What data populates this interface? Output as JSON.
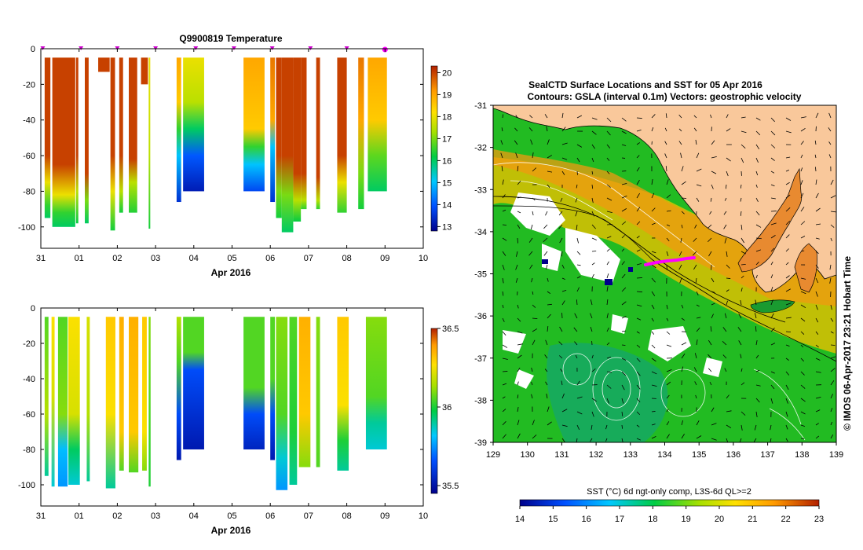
{
  "charts": {
    "top": {
      "title": "Q9900819  Temperature",
      "xlabel": "Apr 2016",
      "xticks": [
        "31",
        "01",
        "02",
        "03",
        "04",
        "05",
        "06",
        "07",
        "08",
        "09",
        "10"
      ],
      "yticks": [
        "0",
        "-20",
        "-40",
        "-60",
        "-80",
        "-100"
      ],
      "cbar_ticks": [
        "20",
        "19",
        "18",
        "17",
        "16",
        "15",
        "14",
        "13"
      ]
    },
    "bottom": {
      "xlabel": "Apr 2016",
      "xticks": [
        "31",
        "01",
        "02",
        "03",
        "04",
        "05",
        "06",
        "07",
        "08",
        "09",
        "10"
      ],
      "yticks": [
        "0",
        "-20",
        "-40",
        "-60",
        "-80",
        "-100"
      ],
      "cbar_ticks": [
        "36.5",
        "36",
        "35.5"
      ]
    },
    "map": {
      "title_line1": "SealCTD Surface Locations and SST for 05 Apr 2016",
      "title_line2": "Contours: GSLA (interval 0.1m) Vectors: geostrophic velocity",
      "side_label": "© IMOS 06-Apr-2017 23:21 Hobart Time",
      "lon_ticks": [
        "129",
        "130",
        "131",
        "132",
        "133",
        "134",
        "135",
        "136",
        "137",
        "138",
        "139"
      ],
      "lat_ticks": [
        "-31",
        "-32",
        "-33",
        "-34",
        "-35",
        "-36",
        "-37",
        "-38",
        "-39"
      ],
      "cbar_title": "SST (°C) 6d ngt-only comp, L3S-6d QL>=2",
      "cbar_ticks": [
        "14",
        "15",
        "16",
        "17",
        "18",
        "19",
        "20",
        "21",
        "22",
        "23"
      ]
    }
  },
  "chart_data": [
    {
      "type": "heatmap",
      "title": "Q9900819  Temperature",
      "xlabel": "Apr 2016",
      "ylabel": "",
      "x_range": [
        0,
        10
      ],
      "y_range": [
        -112,
        0
      ],
      "colorbar_range": [
        12.8,
        20.3
      ],
      "profile_markers_x": [
        0.05,
        1.05,
        2.0,
        3.0,
        4.05,
        5.05,
        6.05,
        7.05,
        8.0
      ],
      "profiles": [
        {
          "x": 0.1,
          "w": 0.15,
          "bottom": -95,
          "stops": [
            [
              -5,
              20
            ],
            [
              -60,
              20
            ],
            [
              -75,
              18
            ],
            [
              -88,
              16.5
            ],
            [
              -95,
              16
            ]
          ]
        },
        {
          "x": 0.3,
          "w": 0.6,
          "bottom": -100,
          "stops": [
            [
              -5,
              20
            ],
            [
              -65,
              20
            ],
            [
              -82,
              18
            ],
            [
              -92,
              16.5
            ],
            [
              -100,
              16
            ]
          ]
        },
        {
          "x": 0.92,
          "w": 0.06,
          "bottom": -98,
          "stops": [
            [
              -5,
              20
            ],
            [
              -60,
              20
            ],
            [
              -80,
              17.5
            ],
            [
              -98,
              16.2
            ]
          ]
        },
        {
          "x": 1.15,
          "w": 0.1,
          "bottom": -98,
          "stops": [
            [
              -5,
              20
            ],
            [
              -70,
              20
            ],
            [
              -85,
              17
            ],
            [
              -98,
              16
            ]
          ]
        },
        {
          "x": 1.5,
          "w": 0.3,
          "bottom": -13,
          "stops": [
            [
              -5,
              20
            ],
            [
              -13,
              20
            ]
          ]
        },
        {
          "x": 1.82,
          "w": 0.12,
          "bottom": -102,
          "stops": [
            [
              -5,
              20
            ],
            [
              -60,
              20
            ],
            [
              -80,
              18
            ],
            [
              -102,
              16.3
            ]
          ]
        },
        {
          "x": 2.05,
          "w": 0.1,
          "bottom": -92,
          "stops": [
            [
              -5,
              20
            ],
            [
              -60,
              20
            ],
            [
              -80,
              17.5
            ],
            [
              -92,
              16.3
            ]
          ]
        },
        {
          "x": 2.3,
          "w": 0.22,
          "bottom": -92,
          "stops": [
            [
              -5,
              20
            ],
            [
              -62,
              20
            ],
            [
              -75,
              17.5
            ],
            [
              -92,
              16.4
            ]
          ]
        },
        {
          "x": 2.62,
          "w": 0.18,
          "bottom": -20,
          "stops": [
            [
              -5,
              20
            ],
            [
              -20,
              20
            ]
          ]
        },
        {
          "x": 2.82,
          "w": 0.04,
          "bottom": -101,
          "stops": [
            [
              -5,
              18
            ],
            [
              -60,
              17.5
            ],
            [
              -101,
              16.3
            ]
          ]
        },
        {
          "x": 3.55,
          "w": 0.12,
          "bottom": -86,
          "stops": [
            [
              -5,
              19
            ],
            [
              -30,
              18.5
            ],
            [
              -45,
              16.5
            ],
            [
              -60,
              15
            ],
            [
              -86,
              13.5
            ]
          ]
        },
        {
          "x": 3.72,
          "w": 0.55,
          "bottom": -80,
          "stops": [
            [
              -5,
              18
            ],
            [
              -30,
              17.5
            ],
            [
              -45,
              16
            ],
            [
              -60,
              14
            ],
            [
              -80,
              13.2
            ]
          ]
        },
        {
          "x": 5.3,
          "w": 0.55,
          "bottom": -80,
          "stops": [
            [
              -5,
              19
            ],
            [
              -45,
              18.5
            ],
            [
              -55,
              16.5
            ],
            [
              -65,
              15
            ],
            [
              -80,
              13.8
            ]
          ]
        },
        {
          "x": 6.0,
          "w": 0.12,
          "bottom": -86,
          "stops": [
            [
              -5,
              19.5
            ],
            [
              -40,
              19
            ],
            [
              -55,
              15
            ],
            [
              -86,
              13.5
            ]
          ]
        },
        {
          "x": 6.15,
          "w": 0.15,
          "bottom": -95,
          "stops": [
            [
              -5,
              20
            ],
            [
              -60,
              20
            ],
            [
              -80,
              17
            ],
            [
              -95,
              16.3
            ]
          ]
        },
        {
          "x": 6.3,
          "w": 0.3,
          "bottom": -103,
          "stops": [
            [
              -5,
              20
            ],
            [
              -60,
              20
            ],
            [
              -82,
              17
            ],
            [
              -103,
              16
            ]
          ]
        },
        {
          "x": 6.6,
          "w": 0.2,
          "bottom": -97,
          "stops": [
            [
              -5,
              20
            ],
            [
              -70,
              20
            ],
            [
              -85,
              17.5
            ],
            [
              -97,
              16.2
            ]
          ]
        },
        {
          "x": 6.8,
          "w": 0.15,
          "bottom": -90,
          "stops": [
            [
              -5,
              20
            ],
            [
              -70,
              20
            ],
            [
              -85,
              17.5
            ],
            [
              -90,
              16.5
            ]
          ]
        },
        {
          "x": 7.2,
          "w": 0.1,
          "bottom": -90,
          "stops": [
            [
              -5,
              20
            ],
            [
              -72,
              20
            ],
            [
              -85,
              17.5
            ],
            [
              -90,
              16.5
            ]
          ]
        },
        {
          "x": 7.75,
          "w": 0.25,
          "bottom": -92,
          "stops": [
            [
              -5,
              20
            ],
            [
              -60,
              20
            ],
            [
              -75,
              18
            ],
            [
              -92,
              16.5
            ]
          ]
        },
        {
          "x": 8.3,
          "w": 0.15,
          "bottom": -90,
          "stops": [
            [
              -5,
              19.5
            ],
            [
              -40,
              19
            ],
            [
              -70,
              17
            ],
            [
              -90,
              16.3
            ]
          ]
        },
        {
          "x": 8.55,
          "w": 0.5,
          "bottom": -80,
          "stops": [
            [
              -5,
              19
            ],
            [
              -40,
              18.5
            ],
            [
              -60,
              16.8
            ],
            [
              -80,
              16
            ]
          ]
        }
      ]
    },
    {
      "type": "heatmap",
      "title": "",
      "xlabel": "Apr 2016",
      "ylabel": "",
      "x_range": [
        0,
        10
      ],
      "y_range": [
        -112,
        0
      ],
      "colorbar_range": [
        35.45,
        36.5
      ],
      "profiles": [
        {
          "x": 0.1,
          "w": 0.1,
          "bottom": -95,
          "stops": [
            [
              -5,
              36
            ],
            [
              -60,
              36.1
            ],
            [
              -95,
              35.85
            ]
          ]
        },
        {
          "x": 0.28,
          "w": 0.08,
          "bottom": -101,
          "stops": [
            [
              -5,
              36.2
            ],
            [
              -50,
              36.15
            ],
            [
              -101,
              35.8
            ]
          ]
        },
        {
          "x": 0.45,
          "w": 0.25,
          "bottom": -101,
          "stops": [
            [
              -5,
              36
            ],
            [
              -60,
              36.05
            ],
            [
              -80,
              35.75
            ],
            [
              -101,
              35.7
            ]
          ]
        },
        {
          "x": 0.72,
          "w": 0.3,
          "bottom": -100,
          "stops": [
            [
              -5,
              36.2
            ],
            [
              -60,
              36.15
            ],
            [
              -80,
              35.9
            ],
            [
              -100,
              35.8
            ]
          ]
        },
        {
          "x": 1.2,
          "w": 0.08,
          "bottom": -98,
          "stops": [
            [
              -5,
              36.15
            ],
            [
              -60,
              36.1
            ],
            [
              -98,
              35.85
            ]
          ]
        },
        {
          "x": 1.7,
          "w": 0.25,
          "bottom": -102,
          "stops": [
            [
              -5,
              36.25
            ],
            [
              -60,
              36.2
            ],
            [
              -102,
              35.85
            ]
          ]
        },
        {
          "x": 2.05,
          "w": 0.12,
          "bottom": -92,
          "stops": [
            [
              -5,
              36.3
            ],
            [
              -70,
              36.25
            ],
            [
              -92,
              36.0
            ]
          ]
        },
        {
          "x": 2.3,
          "w": 0.25,
          "bottom": -93,
          "stops": [
            [
              -5,
              36.3
            ],
            [
              -70,
              36.25
            ],
            [
              -93,
              36.0
            ]
          ]
        },
        {
          "x": 2.65,
          "w": 0.12,
          "bottom": -92,
          "stops": [
            [
              -5,
              36.25
            ],
            [
              -70,
              36.2
            ],
            [
              -92,
              36.05
            ]
          ]
        },
        {
          "x": 2.82,
          "w": 0.05,
          "bottom": -101,
          "stops": [
            [
              -5,
              36.05
            ],
            [
              -101,
              35.95
            ]
          ]
        },
        {
          "x": 3.55,
          "w": 0.12,
          "bottom": -86,
          "stops": [
            [
              -5,
              36.1
            ],
            [
              -30,
              36.0
            ],
            [
              -60,
              35.6
            ],
            [
              -86,
              35.5
            ]
          ]
        },
        {
          "x": 3.72,
          "w": 0.55,
          "bottom": -80,
          "stops": [
            [
              -5,
              36.0
            ],
            [
              -25,
              36.0
            ],
            [
              -35,
              35.6
            ],
            [
              -80,
              35.5
            ]
          ]
        },
        {
          "x": 5.3,
          "w": 0.55,
          "bottom": -80,
          "stops": [
            [
              -5,
              36.0
            ],
            [
              -45,
              36.0
            ],
            [
              -60,
              35.6
            ],
            [
              -80,
              35.52
            ]
          ]
        },
        {
          "x": 6.0,
          "w": 0.12,
          "bottom": -86,
          "stops": [
            [
              -5,
              36.0
            ],
            [
              -40,
              36.0
            ],
            [
              -60,
              35.6
            ],
            [
              -86,
              35.5
            ]
          ]
        },
        {
          "x": 6.15,
          "w": 0.3,
          "bottom": -103,
          "stops": [
            [
              -5,
              36.05
            ],
            [
              -60,
              36.0
            ],
            [
              -85,
              35.8
            ],
            [
              -103,
              35.7
            ]
          ]
        },
        {
          "x": 6.5,
          "w": 0.2,
          "bottom": -100,
          "stops": [
            [
              -5,
              36.0
            ],
            [
              -70,
              35.95
            ],
            [
              -100,
              35.85
            ]
          ]
        },
        {
          "x": 6.75,
          "w": 0.3,
          "bottom": -90,
          "stops": [
            [
              -5,
              36.3
            ],
            [
              -60,
              36.25
            ],
            [
              -90,
              36.05
            ]
          ]
        },
        {
          "x": 7.2,
          "w": 0.1,
          "bottom": -90,
          "stops": [
            [
              -5,
              36.05
            ],
            [
              -90,
              36.0
            ]
          ]
        },
        {
          "x": 7.75,
          "w": 0.3,
          "bottom": -92,
          "stops": [
            [
              -5,
              36.25
            ],
            [
              -55,
              36.2
            ],
            [
              -75,
              35.95
            ],
            [
              -92,
              35.85
            ]
          ]
        },
        {
          "x": 8.5,
          "w": 0.55,
          "bottom": -80,
          "stops": [
            [
              -5,
              36.05
            ],
            [
              -50,
              36.0
            ],
            [
              -65,
              35.85
            ],
            [
              -80,
              35.8
            ]
          ]
        }
      ]
    },
    {
      "type": "heatmap",
      "title": "SealCTD Surface Locations and SST for 05 Apr 2016",
      "subtitle": "Contours: GSLA (interval 0.1m) Vectors: geostrophic velocity",
      "xlabel": "",
      "ylabel": "",
      "x_range": [
        129,
        139
      ],
      "y_range": [
        -39,
        -31
      ],
      "colorbar_label": "SST (°C) 6d ngt-only comp, L3S-6d QL>=2",
      "colorbar_range": [
        14,
        23
      ],
      "seal_track_lon_range": [
        133.7,
        134.8
      ],
      "seal_track_lat": -34.7
    }
  ]
}
